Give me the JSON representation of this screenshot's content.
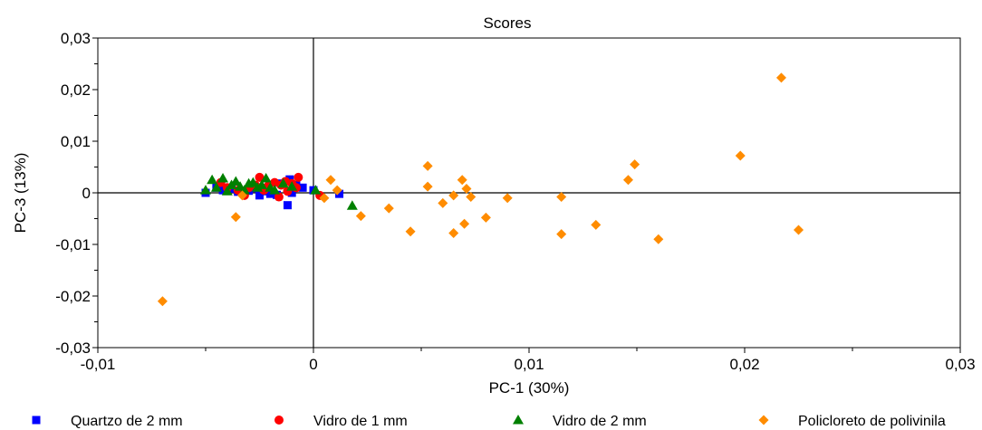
{
  "chart_data": {
    "type": "scatter",
    "title": "Scores",
    "xlabel": "PC-1 (30%)",
    "ylabel": "PC-3 (13%)",
    "xlim": [
      -0.01,
      0.03
    ],
    "ylim": [
      -0.03,
      0.03
    ],
    "x_ticks": [
      "-0,01",
      "0",
      "0,01",
      "0,02",
      "0,03"
    ],
    "y_ticks": [
      "0,03",
      "0,02",
      "0,01",
      "0",
      "-0,01",
      "-0,02",
      "-0,03"
    ],
    "zero_lines": true,
    "legend_position": "bottom",
    "series": [
      {
        "name": "Quartzo de 2 mm",
        "marker": "square",
        "color": "#0000ff",
        "points": [
          [
            -0.005,
            0.0
          ],
          [
            -0.0045,
            0.001
          ],
          [
            -0.0042,
            0.0005
          ],
          [
            -0.0038,
            0.0008
          ],
          [
            -0.0035,
            0.0002
          ],
          [
            -0.003,
            0.0004
          ],
          [
            -0.0028,
            0.0009
          ],
          [
            -0.0025,
            -0.0005
          ],
          [
            -0.0023,
            0.0003
          ],
          [
            -0.002,
            -0.0002
          ],
          [
            -0.0017,
            -0.0004
          ],
          [
            -0.0015,
            0.0018
          ],
          [
            -0.0012,
            -0.0024
          ],
          [
            -0.0011,
            0.0026
          ],
          [
            -0.001,
            0.0
          ],
          [
            -0.0008,
            0.0015
          ],
          [
            -0.0005,
            0.001
          ],
          [
            0.0,
            0.0005
          ],
          [
            0.0012,
            -0.0002
          ]
        ]
      },
      {
        "name": "Vidro de 1 mm",
        "marker": "circle",
        "color": "#ff0000",
        "points": [
          [
            -0.0043,
            0.002
          ],
          [
            -0.004,
            0.001
          ],
          [
            -0.0035,
            0.0005
          ],
          [
            -0.0032,
            -0.0005
          ],
          [
            -0.003,
            0.001
          ],
          [
            -0.0027,
            0.0015
          ],
          [
            -0.0025,
            0.003
          ],
          [
            -0.0023,
            0.0005
          ],
          [
            -0.0021,
            0.0013
          ],
          [
            -0.0018,
            0.002
          ],
          [
            -0.0016,
            -0.0008
          ],
          [
            -0.0015,
            0.0015
          ],
          [
            -0.0013,
            0.0022
          ],
          [
            -0.0012,
            0.0003
          ],
          [
            -0.001,
            0.0018
          ],
          [
            -0.0008,
            0.001
          ],
          [
            -0.0007,
            0.003
          ],
          [
            0.0003,
            -0.0005
          ]
        ]
      },
      {
        "name": "Vidro de 2 mm",
        "marker": "triangle",
        "color": "#008000",
        "points": [
          [
            -0.005,
            0.0005
          ],
          [
            -0.0047,
            0.0025
          ],
          [
            -0.0045,
            0.001
          ],
          [
            -0.0042,
            0.0028
          ],
          [
            -0.004,
            0.0003
          ],
          [
            -0.0038,
            0.0015
          ],
          [
            -0.0036,
            0.0022
          ],
          [
            -0.0034,
            0.0012
          ],
          [
            -0.0032,
            0.0005
          ],
          [
            -0.003,
            0.0018
          ],
          [
            -0.0028,
            0.002
          ],
          [
            -0.0026,
            0.001
          ],
          [
            -0.0024,
            0.0015
          ],
          [
            -0.0022,
            0.0028
          ],
          [
            -0.002,
            0.001
          ],
          [
            -0.0018,
            0.0005
          ],
          [
            -0.0014,
            0.0018
          ],
          [
            -0.001,
            0.0012
          ],
          [
            0.0001,
            0.0005
          ],
          [
            0.0018,
            -0.0025
          ]
        ]
      },
      {
        "name": "Policloreto de polivinila",
        "marker": "diamond",
        "color": "#ff8c00",
        "points": [
          [
            -0.007,
            -0.021
          ],
          [
            -0.0036,
            -0.0047
          ],
          [
            -0.0033,
            -0.0005
          ],
          [
            0.0005,
            -0.001
          ],
          [
            0.0008,
            0.0025
          ],
          [
            0.0011,
            0.0005
          ],
          [
            0.0022,
            -0.0045
          ],
          [
            0.0035,
            -0.003
          ],
          [
            0.0045,
            -0.0075
          ],
          [
            0.0053,
            0.0052
          ],
          [
            0.0053,
            0.0012
          ],
          [
            0.006,
            -0.002
          ],
          [
            0.0065,
            -0.0005
          ],
          [
            0.0065,
            -0.0078
          ],
          [
            0.0069,
            0.0025
          ],
          [
            0.007,
            -0.006
          ],
          [
            0.0071,
            0.0008
          ],
          [
            0.0073,
            -0.0008
          ],
          [
            0.008,
            -0.0048
          ],
          [
            0.009,
            -0.001
          ],
          [
            0.0115,
            -0.0008
          ],
          [
            0.0115,
            -0.008
          ],
          [
            0.0131,
            -0.0062
          ],
          [
            0.0146,
            0.0025
          ],
          [
            0.0149,
            0.0055
          ],
          [
            0.016,
            -0.009
          ],
          [
            0.0198,
            0.0072
          ],
          [
            0.0217,
            0.0223
          ],
          [
            0.0225,
            -0.0072
          ]
        ]
      }
    ]
  }
}
